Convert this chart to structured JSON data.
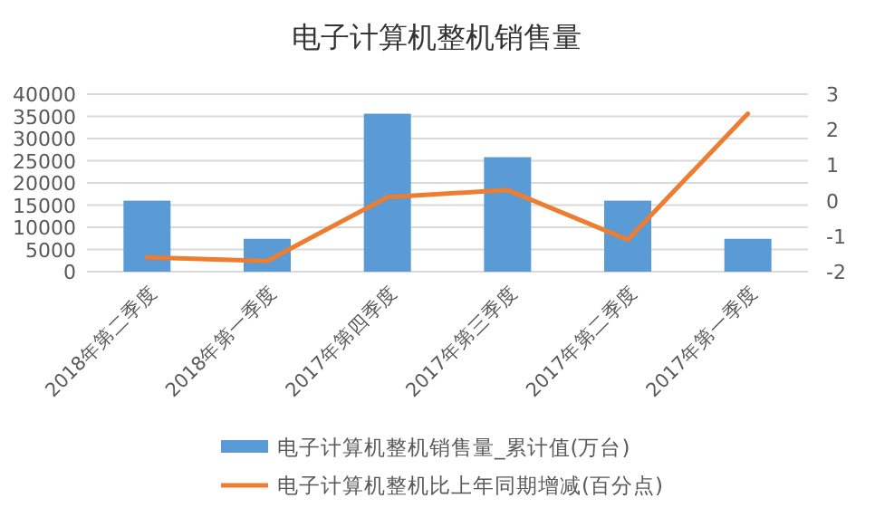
{
  "chart_data": {
    "type": "bar",
    "title": "电子计算机整机销售量",
    "categories": [
      "2018年第二季度",
      "2018年第一季度",
      "2017年第四季度",
      "2017年第三季度",
      "2017年第二季度",
      "2017年第一季度"
    ],
    "series": [
      {
        "name": "电子计算机整机销售量_累计值(万台)",
        "color": "#5b9bd5",
        "values": [
          16000,
          7400,
          35600,
          25800,
          16000,
          7400
        ]
      },
      {
        "name": "电子计算机整机比上年同期增减(百分点)",
        "color": "#ed7d31",
        "type": "line",
        "axis": "y2",
        "values": [
          -1.6,
          -1.7,
          0.1,
          0.3,
          -1.1,
          2.45
        ]
      }
    ],
    "ylim": [
      0,
      40000
    ],
    "yticks": [
      0,
      5000,
      10000,
      15000,
      20000,
      25000,
      30000,
      35000,
      40000
    ],
    "y2lim": [
      -2,
      3
    ],
    "y2ticks": [
      -2,
      -1,
      0,
      1,
      2,
      3
    ],
    "grid": "y",
    "legend": "bottom"
  }
}
